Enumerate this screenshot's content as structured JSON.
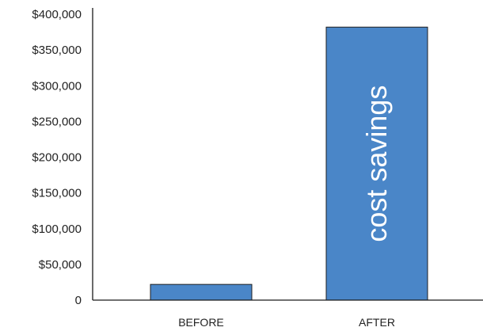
{
  "chart_data": {
    "type": "bar",
    "categories": [
      "BEFORE",
      "AFTER"
    ],
    "values": [
      22000,
      382000
    ],
    "bar_annotations": [
      "",
      "cost savings"
    ],
    "ylim": [
      0,
      400000
    ],
    "ytick_labels": [
      "0",
      "$50,000",
      "$100,000",
      "$150,000",
      "$200,000",
      "$250,000",
      "$300,000",
      "$350,000",
      "$400,000"
    ],
    "title": "",
    "xlabel": "",
    "ylabel": "",
    "grid": false,
    "legend": "none",
    "colors": {
      "bar_fill": "#4a86c8",
      "bar_stroke": "#1f1f1f",
      "axis": "#1a1a1a",
      "text": "#222222"
    }
  }
}
